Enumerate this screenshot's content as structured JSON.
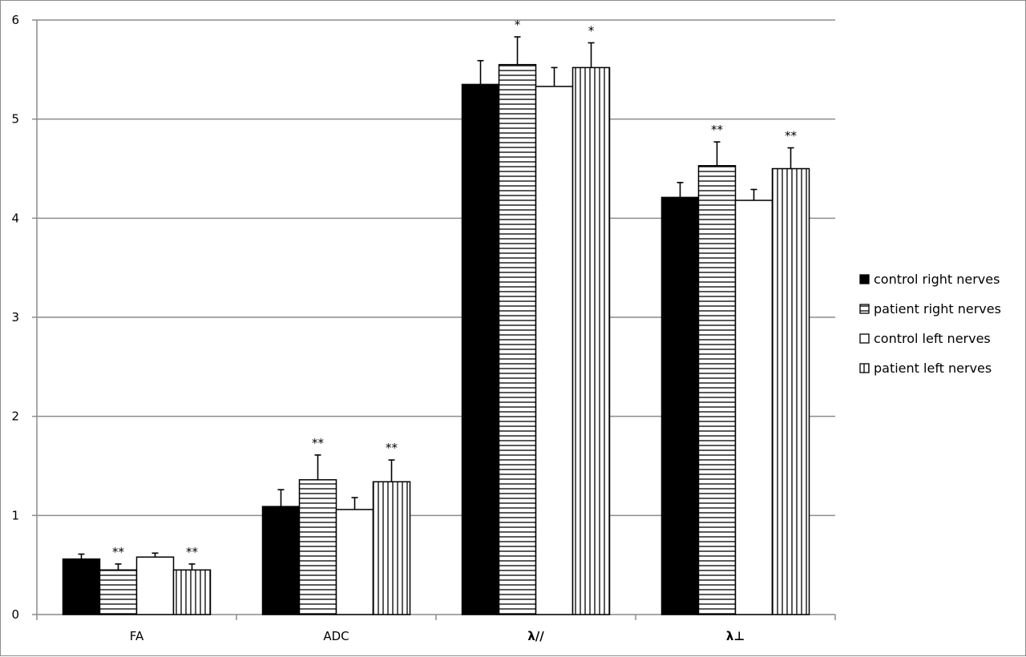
{
  "chart_data": {
    "type": "bar",
    "title": "",
    "xlabel": "",
    "ylabel": "",
    "ylim": [
      0,
      6
    ],
    "yticks": [
      0,
      1,
      2,
      3,
      4,
      5,
      6
    ],
    "grid": true,
    "legend_position": "right",
    "categories": [
      "FA",
      "ADC",
      "λ//",
      "λ⊥"
    ],
    "series": [
      {
        "name": "control right nerves",
        "fill": "solid-black",
        "values": [
          0.56,
          1.09,
          5.35,
          4.21
        ],
        "errors": [
          0.05,
          0.17,
          0.24,
          0.15
        ],
        "significance": [
          "",
          "",
          "",
          ""
        ]
      },
      {
        "name": "patient right nerves",
        "fill": "horizontal-stripes",
        "values": [
          0.45,
          1.36,
          5.55,
          4.53
        ],
        "errors": [
          0.06,
          0.25,
          0.28,
          0.24
        ],
        "significance": [
          "**",
          "**",
          "*",
          "**"
        ]
      },
      {
        "name": "control left nerves",
        "fill": "white",
        "values": [
          0.58,
          1.06,
          5.33,
          4.18
        ],
        "errors": [
          0.04,
          0.12,
          0.19,
          0.11
        ],
        "significance": [
          "",
          "",
          "",
          ""
        ]
      },
      {
        "name": "patient left nerves",
        "fill": "vertical-stripes",
        "values": [
          0.45,
          1.34,
          5.52,
          4.5
        ],
        "errors": [
          0.06,
          0.22,
          0.25,
          0.21
        ],
        "significance": [
          "**",
          "**",
          "*",
          "**"
        ]
      }
    ]
  },
  "colors": {
    "bar_stroke": "#000000",
    "grid": "#8c8c8c",
    "axis": "#8c8c8c",
    "frame": "#8c8c8c"
  }
}
